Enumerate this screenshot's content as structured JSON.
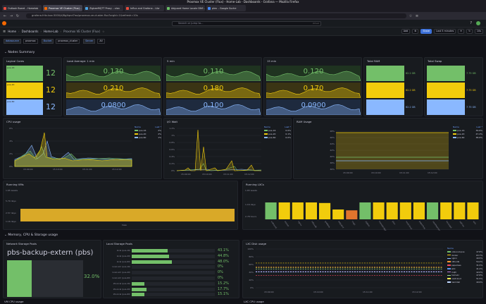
{
  "browser": {
    "window_title": "Proxmox VE Cluster (Flux) - Home-Lab - Dashboards - Grafana — Mozilla Firefox",
    "tabs": [
      {
        "label": "Outlook Board – Homelab",
        "color": "#e84c3d"
      },
      {
        "label": "Proxmox VE Cluster (Flux) – Hom",
        "color": "#f46800"
      },
      {
        "label": "ZigbeeMQTT Proxy – vlan",
        "color": "#4ba3e3"
      },
      {
        "label": "Influx and Grafana – Libr",
        "color": "#e84c3d"
      },
      {
        "label": "Adguard Home Locale DNS –",
        "color": "#6bbe66"
      },
      {
        "label": "plex – Google Suche",
        "color": "#4285f4"
      }
    ],
    "url": "grafana.fritz.box:3000/d/8gXqnd7wz/proxmox-ve-cluster-flux?orgId=1&refresh=10s"
  },
  "grafana": {
    "search_placeholder": "Search or jump to...",
    "search_kbd": "ctrl+k",
    "breadcrumbs": [
      "Home",
      "Dashboards",
      "Home-Lab",
      "Proxmox VE Cluster (Flux)"
    ],
    "toolbar": {
      "add": "Add",
      "share": "Share",
      "time_range": "Last 5 minutes",
      "refresh": "10s"
    }
  },
  "variables": [
    {
      "label": "datasource",
      "value": "proxmox"
    },
    {
      "label": "Bucket",
      "value": "proxmox_cluster"
    },
    {
      "label": "Server",
      "value": "All"
    }
  ],
  "rows": {
    "nodes_summary": "Nodes Summary",
    "memory": "Memory, CPU & Storage usage"
  },
  "panels": {
    "logical_cores": {
      "title": "Logical Cores",
      "rows": [
        {
          "name": "pve-16",
          "value": "12",
          "color": "#73bf69"
        },
        {
          "name": "pve-20",
          "value": "12",
          "color": "#f2cc0c"
        },
        {
          "name": "pve-60",
          "value": "12",
          "color": "#8ab8ff"
        }
      ]
    },
    "load_1m": {
      "title": "Load Average: 1 min",
      "values": [
        "0.130",
        "0.210",
        "0.0800"
      ]
    },
    "load_5m": {
      "title": "5 min",
      "values": [
        "0.110",
        "0.180",
        "0.100"
      ]
    },
    "load_15m": {
      "title": "15 min",
      "values": [
        "0.120",
        "0.170",
        "0.0900"
      ]
    },
    "total_ram": {
      "title": "Total RAM",
      "values": [
        "62.2 GB",
        "62.2 GB",
        "62.2 GB"
      ]
    },
    "total_swap": {
      "title": "Total Swap",
      "values": [
        "7.75 GB",
        "7.75 GB",
        "7.75 GB"
      ]
    },
    "cpu_usage": {
      "title": "CPU usage",
      "legend_head": [
        "Name",
        "Last *"
      ],
      "legend": [
        [
          "pve-16",
          "2%"
        ],
        [
          "pve-20",
          "2%"
        ],
        [
          "pve-60",
          "1%"
        ]
      ],
      "yticks": [
        "6%",
        "4%",
        "2%",
        "0%"
      ],
      "xticks": [
        "15:09:00",
        "15:10:00",
        "15:11:00",
        "15:12:00"
      ]
    },
    "io_wait": {
      "title": "I/O Wait",
      "legend_head": [
        "Name",
        "Last *"
      ],
      "legend": [
        [
          "pve-16",
          "0.0%"
        ],
        [
          "pve-20",
          "0.1%"
        ],
        [
          "pve-60",
          "0.0%"
        ]
      ],
      "yticks": [
        "1.2%",
        "1%",
        "0.8%",
        "0.6%",
        "0.4%",
        "0.2%",
        "0%"
      ],
      "xticks": [
        "15:09:00",
        "15:10:00",
        "15:11:00",
        "15:12:00"
      ]
    },
    "ram_usage": {
      "title": "RAM Usage",
      "legend_head": [
        "Name",
        "Last *"
      ],
      "legend": [
        [
          "pve-16",
          "39.6%"
        ],
        [
          "pve-20",
          "47.2%"
        ],
        [
          "pve-60",
          "38.6%"
        ]
      ],
      "yticks": [
        "48%",
        "46%",
        "44%",
        "42%",
        "40%",
        "38%",
        "36%"
      ],
      "xticks": [
        "15:09:00",
        "15:10:00",
        "15:11:00",
        "15:12:00"
      ]
    },
    "running_vms": {
      "title": "Running VMs",
      "yticks": [
        "1.65 weeks",
        "5.79 days",
        "2.57 days",
        "1.16 days"
      ],
      "bar_label": "hass"
    },
    "running_lxcs": {
      "title": "Running LXCs",
      "yticks": [
        "1.65 weeks",
        "1.16 days",
        "2.78 hours"
      ],
      "bars": [
        {
          "label": "unbound",
          "value": 0.6,
          "color": "#73bf69"
        },
        {
          "label": "docker",
          "value": 0.6,
          "color": "#f2cc0c"
        },
        {
          "label": "nginx",
          "value": 0.6,
          "color": "#f2cc0c"
        },
        {
          "label": "influxdb",
          "value": 0.6,
          "color": "#f2cc0c"
        },
        {
          "label": "grafana",
          "value": 0.58,
          "color": "#f2cc0c"
        },
        {
          "label": "adguard",
          "value": 0.35,
          "color": "#f2cc0c"
        },
        {
          "label": "mqtt",
          "value": 0.32,
          "color": "#e0752d"
        },
        {
          "label": "zigbee",
          "value": 0.6,
          "color": "#73bf69"
        },
        {
          "label": "homebridge",
          "value": 0.6,
          "color": "#f2cc0c"
        },
        {
          "label": "plex",
          "value": 0.6,
          "color": "#f2cc0c"
        },
        {
          "label": "nextcloud",
          "value": 0.6,
          "color": "#f2cc0c"
        },
        {
          "label": "paperless",
          "value": 0.6,
          "color": "#f2cc0c"
        },
        {
          "label": "vaultwarden",
          "value": 0.6,
          "color": "#73bf69"
        },
        {
          "label": "heimdall",
          "value": 0.6,
          "color": "#f2cc0c"
        },
        {
          "label": "uptime",
          "value": 0.6,
          "color": "#f2cc0c"
        },
        {
          "label": "wiki",
          "value": 0.6,
          "color": "#f2cc0c"
        }
      ]
    },
    "network_storage": {
      "title": "Network Storage Pools",
      "name": "pbs-backup-extern (pbs)",
      "value": "32.0%",
      "fill": 0.32
    },
    "local_storage": {
      "title": "Local Storage Pools",
      "rows": [
        {
          "name": "local (pve-16)",
          "value": "43.1%",
          "fill": 0.431
        },
        {
          "name": "local (pve-20)",
          "value": "44.8%",
          "fill": 0.448
        },
        {
          "name": "local (pve-60)",
          "value": "48.0%",
          "fill": 0.48
        },
        {
          "name": "local-lvm (pve-16)",
          "value": "0%",
          "fill": 0
        },
        {
          "name": "local-lvm (pve-20)",
          "value": "0%",
          "fill": 0
        },
        {
          "name": "local-lvm (pve-60)",
          "value": "0%",
          "fill": 0
        },
        {
          "name": "zfs-local (pve-16)",
          "value": "15.2%",
          "fill": 0.152
        },
        {
          "name": "zfs-local (pve-20)",
          "value": "17.7%",
          "fill": 0.177
        },
        {
          "name": "zfs-local (pve-60)",
          "value": "15.1%",
          "fill": 0.151
        }
      ]
    },
    "lxc_disk": {
      "title": "LXC Disk usage",
      "legend_head": "Name",
      "legend": [
        [
          "unbound-pve",
          "47.8%",
          "#73bf69"
        ],
        [
          "docker",
          "63.7%",
          "#f2cc0c"
        ],
        [
          "nginx",
          "40.5%",
          "#8ab8ff"
        ],
        [
          "influxdb",
          "54.2%",
          "#ff9830"
        ],
        [
          "paperless",
          "31.5%",
          "#f2495c"
        ],
        [
          "wiki",
          "41.2%",
          "#5794f2"
        ],
        [
          "mqtt",
          "42.0%",
          "#b877d9"
        ],
        [
          "homebr",
          "47.8%",
          "#96d98d"
        ],
        [
          "nextcloud",
          "51.5%",
          "#ffee52"
        ],
        [
          "heimdall",
          "40.9%",
          "#c0d8ff"
        ]
      ],
      "yticks": [
        "100%",
        "80%",
        "60%",
        "40%",
        "20%",
        "0%"
      ],
      "xticks": [
        "15:09:00",
        "15:10:00",
        "15:11:00",
        "15:12:00"
      ]
    },
    "vm_cpu": {
      "title": "VM CPU usage"
    },
    "lxc_cpu": {
      "title": "LXC CPU usage"
    }
  }
}
